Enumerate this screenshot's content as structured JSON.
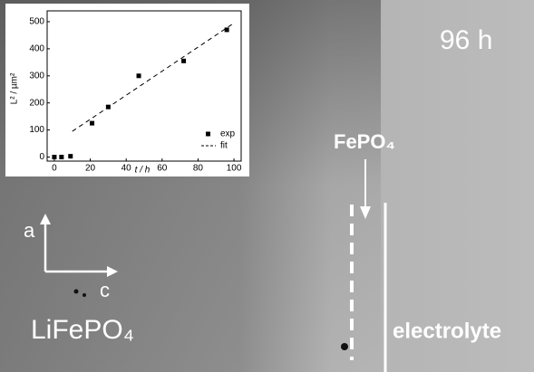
{
  "image_labels": {
    "time": "96 h",
    "phase_top": "FePO₄",
    "axis_a": "a",
    "axis_c": "c",
    "phase_left": "LiFePO₄",
    "electrolyte": "electrolyte"
  },
  "chart_data": {
    "type": "scatter",
    "x_label": "t / h",
    "y_label": "L² / µm²",
    "series": [
      {
        "name": "exp",
        "type": "scatter",
        "color": "#000000",
        "x": [
          0,
          4,
          9,
          21,
          30,
          47,
          72,
          96
        ],
        "values": [
          0,
          0,
          3,
          125,
          185,
          300,
          355,
          470
        ]
      },
      {
        "name": "fit",
        "type": "line",
        "color": "#000000",
        "dashed": true,
        "x": [
          10,
          100
        ],
        "values": [
          95,
          495
        ]
      }
    ],
    "xlim": [
      -4,
      104
    ],
    "ylim": [
      -15,
      540
    ],
    "xticks": [
      0,
      20,
      40,
      60,
      80,
      100
    ],
    "yticks": [
      0,
      100,
      200,
      300,
      400,
      500
    ],
    "legend": "lower right"
  }
}
